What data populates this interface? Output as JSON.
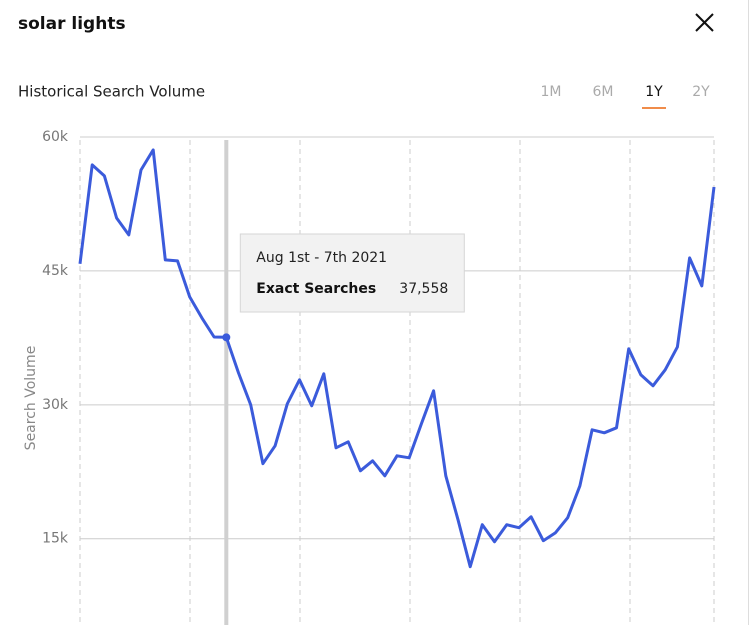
{
  "header": {
    "title": "solar lights"
  },
  "section_title": "Historical Search Volume",
  "tabs": [
    "1M",
    "6M",
    "1Y",
    "2Y"
  ],
  "active_tab": 2,
  "chart_data": {
    "type": "line",
    "y_label": "Search Volume",
    "categories": [
      null,
      null,
      null,
      null,
      null,
      null,
      null,
      null,
      null,
      null,
      null,
      null,
      "Aug 1st - 7th 2021",
      null,
      null,
      null,
      null,
      null,
      null,
      null,
      null,
      null,
      null,
      null,
      null,
      null,
      null,
      null,
      null,
      null,
      null,
      null,
      null,
      null,
      null,
      null,
      null,
      null,
      null,
      null,
      null,
      null,
      null,
      null,
      null,
      null,
      null,
      null,
      null,
      null,
      null,
      null,
      null
    ],
    "series": [
      {
        "name": "Exact Searches",
        "color": "#3b5bdb",
        "values": [
          45800,
          56870,
          55640,
          50930,
          49030,
          56300,
          58550,
          46230,
          46120,
          42090,
          39740,
          37600,
          37558,
          33580,
          30000,
          23400,
          25410,
          30110,
          32800,
          29890,
          33470,
          25190,
          25860,
          22610,
          23730,
          22050,
          24290,
          24070,
          27870,
          31570,
          22050,
          17130,
          11870,
          16570,
          14660,
          16570,
          16230,
          17460,
          14780,
          15670,
          17350,
          20930,
          27200,
          26870,
          27430,
          36270,
          33360,
          32130,
          33920,
          36490,
          46460,
          43320,
          54400
        ],
        "value_labels": [
          null,
          null,
          null,
          null,
          null,
          null,
          null,
          null,
          null,
          null,
          null,
          null,
          "37,558",
          null,
          null,
          null,
          null,
          null,
          null,
          null,
          null,
          null,
          null,
          null,
          null,
          null,
          null,
          null,
          null,
          null,
          null,
          null,
          null,
          null,
          null,
          null,
          null,
          null,
          null,
          null,
          null,
          null,
          null,
          null,
          null,
          null,
          null,
          null,
          null,
          null,
          null,
          null,
          null
        ]
      }
    ],
    "ylim": [
      5000,
      60000
    ],
    "yticks": [
      {
        "value": 15000,
        "label": "15k"
      },
      {
        "value": 30000,
        "label": "30k"
      },
      {
        "value": 45000,
        "label": "45k"
      },
      {
        "value": 60000,
        "label": "60k"
      }
    ],
    "grid": true
  }
}
